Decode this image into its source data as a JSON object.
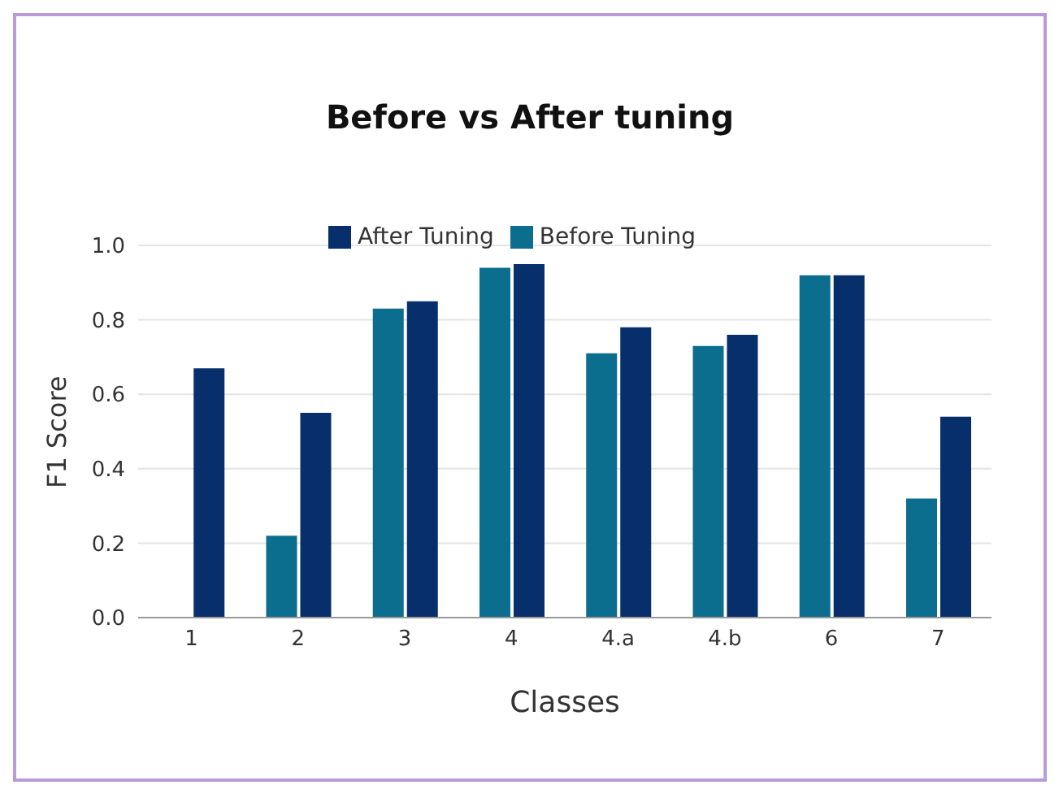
{
  "chart_data": {
    "type": "bar",
    "title": "Before vs After tuning",
    "xlabel": "Classes",
    "ylabel": "F1 Score",
    "categories": [
      "1",
      "2",
      "3",
      "4",
      "4.a",
      "4.b",
      "6",
      "7"
    ],
    "series": [
      {
        "name": "Before Tuning",
        "color": "#0b6e8e",
        "values": [
          null,
          0.22,
          0.83,
          0.94,
          0.71,
          0.73,
          0.92,
          0.32
        ]
      },
      {
        "name": "After Tuning",
        "color": "#062f6b",
        "values": [
          0.67,
          0.55,
          0.85,
          0.95,
          0.78,
          0.76,
          0.92,
          0.54
        ]
      }
    ],
    "ylim": [
      0,
      1
    ],
    "yticks": [
      {
        "value": 0,
        "label": "0.0"
      },
      {
        "value": 0.2,
        "label": "0.2"
      },
      {
        "value": 0.4,
        "label": "0.4"
      },
      {
        "value": 0.6,
        "label": "0.6"
      },
      {
        "value": 0.8,
        "label": "0.8"
      },
      {
        "value": 1,
        "label": "1.0"
      }
    ],
    "grid": "y",
    "legend": "top"
  }
}
